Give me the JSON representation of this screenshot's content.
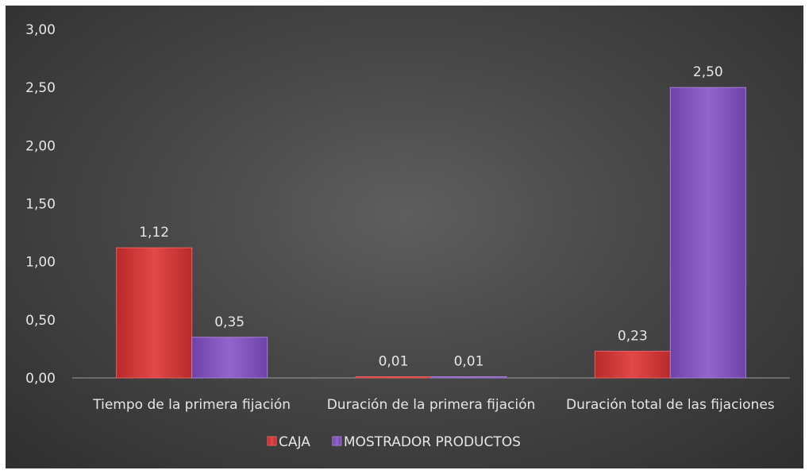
{
  "chart_data": {
    "type": "bar",
    "categories": [
      "Tiempo de la primera fijación",
      "Duración de la primera fijación",
      "Duración total de las fijaciones"
    ],
    "series": [
      {
        "name": "CAJA",
        "values": [
          1.12,
          0.01,
          0.23
        ],
        "labels": [
          "1,12",
          "0,01",
          "0,23"
        ],
        "color": "#d83b3b"
      },
      {
        "name": "MOSTRADOR PRODUCTOS",
        "values": [
          0.35,
          0.01,
          2.5
        ],
        "labels": [
          "0,35",
          "0,01",
          "2,50"
        ],
        "color": "#8a5bc4"
      }
    ],
    "yticks": [
      0,
      0.5,
      1,
      1.5,
      2,
      2.5,
      3
    ],
    "ytick_labels": [
      "0,00",
      "0,50",
      "1,00",
      "1,50",
      "2,00",
      "2,50",
      "3,00"
    ],
    "ylim": [
      0,
      3
    ],
    "grid": false,
    "legend": "bottom",
    "background": "#4a4a4a"
  }
}
